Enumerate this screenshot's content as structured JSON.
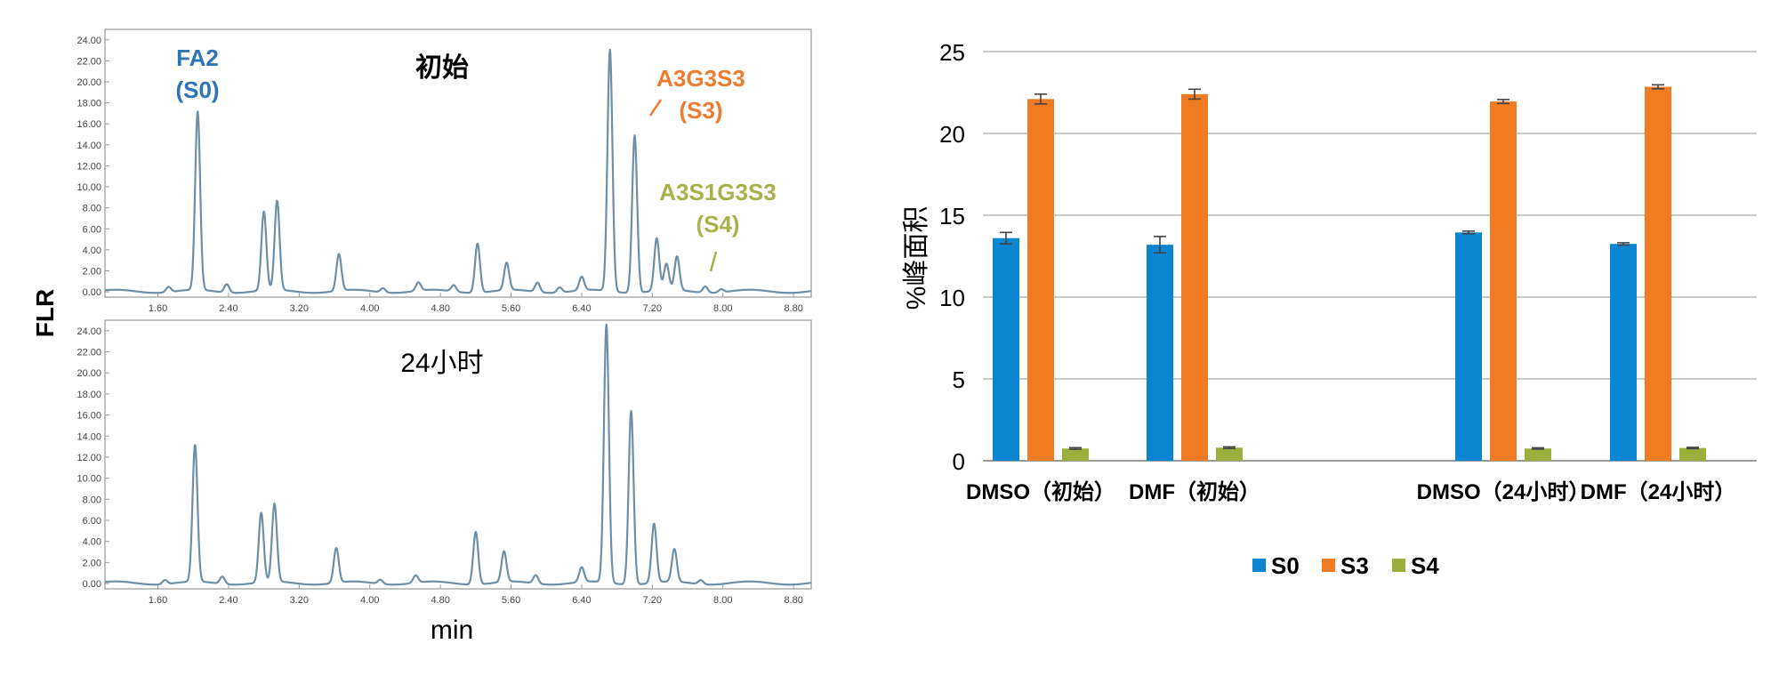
{
  "figure": {
    "y_label": "FLR",
    "x_label": "min"
  },
  "chart_data": [
    {
      "type": "line",
      "title": "初始",
      "xlim": [
        1.0,
        9.0
      ],
      "ylim": [
        -0.5,
        25
      ],
      "x_ticks": [
        "1.60",
        "2.40",
        "3.20",
        "4.00",
        "4.80",
        "5.60",
        "6.40",
        "7.20",
        "8.00",
        "8.80"
      ],
      "y_ticks": [
        "0.00",
        "2.00",
        "4.00",
        "6.00",
        "8.00",
        "10.00",
        "12.00",
        "14.00",
        "16.00",
        "18.00",
        "20.00",
        "22.00",
        "24.00"
      ],
      "peaks": [
        {
          "x": 1.72,
          "y": 0.5
        },
        {
          "x": 2.05,
          "y": 17.0
        },
        {
          "x": 2.38,
          "y": 0.8
        },
        {
          "x": 2.8,
          "y": 7.5
        },
        {
          "x": 2.95,
          "y": 8.5
        },
        {
          "x": 3.65,
          "y": 3.5
        },
        {
          "x": 4.15,
          "y": 0.4
        },
        {
          "x": 4.55,
          "y": 0.8
        },
        {
          "x": 4.95,
          "y": 0.6
        },
        {
          "x": 5.22,
          "y": 4.7
        },
        {
          "x": 5.55,
          "y": 2.6
        },
        {
          "x": 5.9,
          "y": 0.9
        },
        {
          "x": 6.15,
          "y": 0.5
        },
        {
          "x": 6.4,
          "y": 1.3
        },
        {
          "x": 6.72,
          "y": 23.0
        },
        {
          "x": 7.0,
          "y": 15.0
        },
        {
          "x": 7.25,
          "y": 5.0
        },
        {
          "x": 7.36,
          "y": 2.5
        },
        {
          "x": 7.48,
          "y": 3.2
        },
        {
          "x": 7.8,
          "y": 0.6
        },
        {
          "x": 7.98,
          "y": 0.3
        }
      ],
      "annotations": [
        {
          "lines": [
            "FA2",
            "(S0)"
          ],
          "color": "#2E75B6"
        },
        {
          "lines": [
            "A3G3S3",
            "(S3)"
          ],
          "color": "#ED7D31",
          "pointer": true
        },
        {
          "lines": [
            "A3S1G3S3",
            "(S4)"
          ],
          "color": "#A9B14A",
          "pointer": true
        }
      ]
    },
    {
      "type": "line",
      "title": "24小时",
      "xlim": [
        1.0,
        9.0
      ],
      "ylim": [
        -0.5,
        25
      ],
      "x_ticks": [
        "1.60",
        "2.40",
        "3.20",
        "4.00",
        "4.80",
        "5.60",
        "6.40",
        "7.20",
        "8.00",
        "8.80"
      ],
      "y_ticks": [
        "0.00",
        "2.00",
        "4.00",
        "6.00",
        "8.00",
        "10.00",
        "12.00",
        "14.00",
        "16.00",
        "18.00",
        "20.00",
        "22.00",
        "24.00"
      ],
      "peaks": [
        {
          "x": 1.68,
          "y": 0.4
        },
        {
          "x": 2.02,
          "y": 13.0
        },
        {
          "x": 2.33,
          "y": 0.7
        },
        {
          "x": 2.77,
          "y": 6.6
        },
        {
          "x": 2.92,
          "y": 7.4
        },
        {
          "x": 3.62,
          "y": 3.3
        },
        {
          "x": 4.12,
          "y": 0.4
        },
        {
          "x": 4.52,
          "y": 0.7
        },
        {
          "x": 5.2,
          "y": 5.0
        },
        {
          "x": 5.52,
          "y": 2.9
        },
        {
          "x": 5.88,
          "y": 0.8
        },
        {
          "x": 6.4,
          "y": 1.4
        },
        {
          "x": 6.68,
          "y": 24.5
        },
        {
          "x": 6.96,
          "y": 16.5
        },
        {
          "x": 7.22,
          "y": 5.6
        },
        {
          "x": 7.45,
          "y": 3.1
        },
        {
          "x": 7.75,
          "y": 0.4
        }
      ]
    },
    {
      "type": "bar",
      "categories": [
        "DMSO（初始）",
        "DMF（初始）",
        "",
        "DMSO（24小时）",
        "DMF（24小时）"
      ],
      "ylabel": "%峰面积",
      "ylim": [
        0,
        25
      ],
      "y_ticks": [
        "0",
        "5",
        "10",
        "15",
        "20",
        "25"
      ],
      "grid": true,
      "legend_position": "bottom",
      "series": [
        {
          "name": "S0",
          "color": "#0A86D0",
          "values": [
            13.6,
            13.2,
            null,
            13.95,
            13.25
          ],
          "errors": [
            0.35,
            0.5,
            null,
            0.08,
            0.07
          ]
        },
        {
          "name": "S3",
          "color": "#F07B22",
          "values": [
            22.1,
            22.4,
            null,
            21.95,
            22.85
          ],
          "errors": [
            0.3,
            0.3,
            null,
            0.12,
            0.12
          ]
        },
        {
          "name": "S4",
          "color": "#9BAF3C",
          "values": [
            0.75,
            0.8,
            null,
            0.75,
            0.78
          ],
          "errors": [
            0.05,
            0.05,
            null,
            0.04,
            0.04
          ]
        }
      ]
    }
  ]
}
